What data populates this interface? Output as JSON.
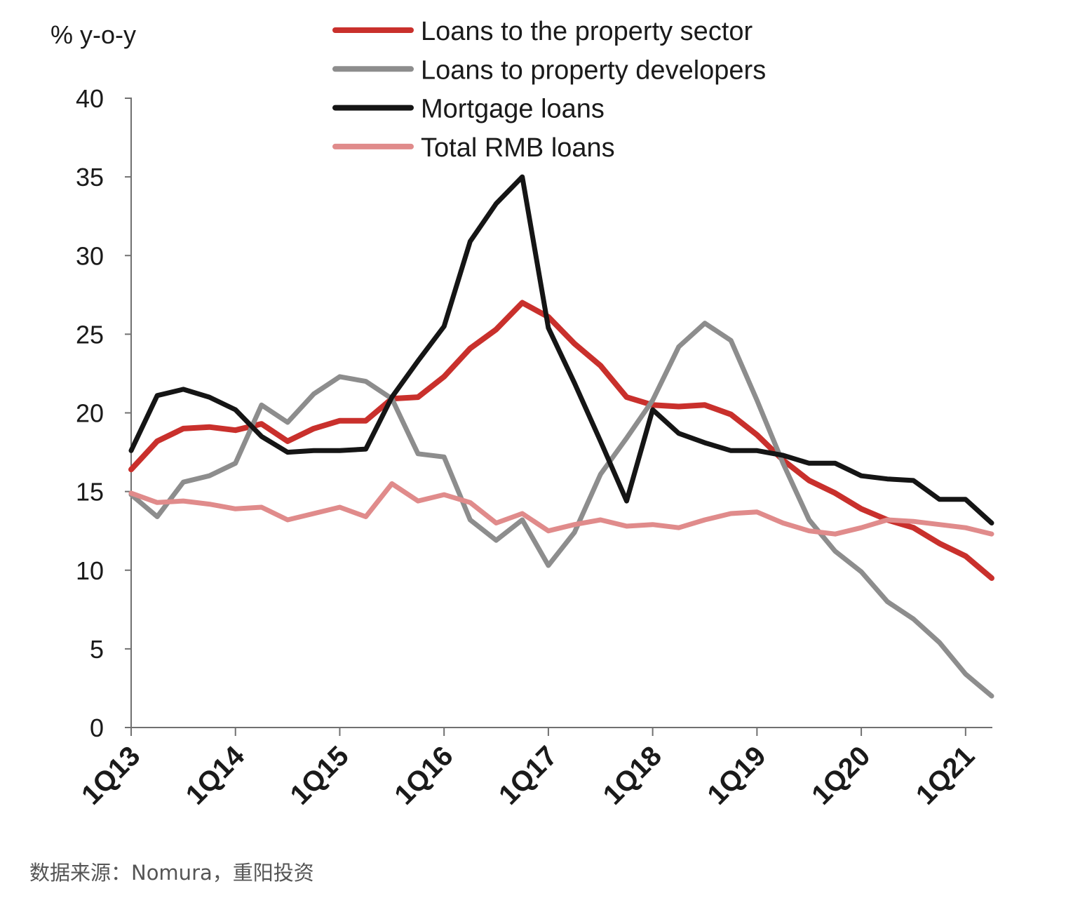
{
  "chart_data": {
    "type": "line",
    "title": "",
    "xlabel": "",
    "ylabel": "% y-o-y",
    "ylim": [
      0,
      40
    ],
    "yticks": [
      0,
      5,
      10,
      15,
      20,
      25,
      30,
      35,
      40
    ],
    "xlim": [
      2013,
      2021.25
    ],
    "xticks": [
      2013,
      2014,
      2015,
      2016,
      2017,
      2018,
      2019,
      2020,
      2021
    ],
    "xtick_labels": [
      "1Q13",
      "1Q14",
      "1Q15",
      "1Q16",
      "1Q17",
      "1Q18",
      "1Q19",
      "1Q20",
      "1Q21"
    ],
    "x": [
      2013,
      2013.25,
      2013.5,
      2013.75,
      2014,
      2014.25,
      2014.5,
      2014.75,
      2015,
      2015.25,
      2015.5,
      2015.75,
      2016,
      2016.25,
      2016.5,
      2016.75,
      2017,
      2017.25,
      2017.5,
      2017.75,
      2018,
      2018.25,
      2018.5,
      2018.75,
      2019,
      2019.25,
      2019.5,
      2019.75,
      2020,
      2020.25,
      2020.5,
      2020.75,
      2021,
      2021.25
    ],
    "legend_position": "top-center",
    "grid": false,
    "series": [
      {
        "name": "Loans to the property sector",
        "color": "#c9302c",
        "values": [
          16.4,
          18.2,
          19.0,
          19.1,
          18.9,
          19.3,
          18.2,
          19.0,
          19.5,
          19.5,
          20.9,
          21.0,
          22.3,
          24.1,
          25.3,
          27.0,
          26.1,
          24.4,
          23.0,
          21.0,
          20.5,
          20.4,
          20.5,
          19.9,
          18.6,
          17.0,
          15.7,
          14.9,
          13.9,
          13.2,
          12.7,
          11.7,
          10.9,
          9.5
        ]
      },
      {
        "name": "Loans to property developers",
        "color": "#8d8d8d",
        "values": [
          14.8,
          13.4,
          15.6,
          16.0,
          16.8,
          20.5,
          19.4,
          21.2,
          22.3,
          22.0,
          20.9,
          17.4,
          17.2,
          13.2,
          11.9,
          13.2,
          10.3,
          12.4,
          16.1,
          18.4,
          20.8,
          24.2,
          25.7,
          24.6,
          20.8,
          16.8,
          13.2,
          11.2,
          9.9,
          8.0,
          6.9,
          5.4,
          3.4,
          2.0
        ]
      },
      {
        "name": "Mortgage loans",
        "color": "#151515",
        "values": [
          17.6,
          21.1,
          21.5,
          21.0,
          20.2,
          18.5,
          17.5,
          17.6,
          17.6,
          17.7,
          21.0,
          23.3,
          25.5,
          30.9,
          33.3,
          35.0,
          25.4,
          21.9,
          18.2,
          14.4,
          20.2,
          18.7,
          18.1,
          17.6,
          17.6,
          17.3,
          16.8,
          16.8,
          16.0,
          15.8,
          15.7,
          14.5,
          14.5,
          13.0
        ]
      },
      {
        "name": "Total RMB loans",
        "color": "#e08b8b",
        "values": [
          14.9,
          14.3,
          14.4,
          14.2,
          13.9,
          14.0,
          13.2,
          13.6,
          14.0,
          13.4,
          15.5,
          14.4,
          14.8,
          14.3,
          13.0,
          13.6,
          12.5,
          12.9,
          13.2,
          12.8,
          12.9,
          12.7,
          13.2,
          13.6,
          13.7,
          13.0,
          12.5,
          12.3,
          12.7,
          13.2,
          13.1,
          12.9,
          12.7,
          12.3
        ]
      }
    ]
  },
  "source": "数据来源：Nomura，重阳投资"
}
